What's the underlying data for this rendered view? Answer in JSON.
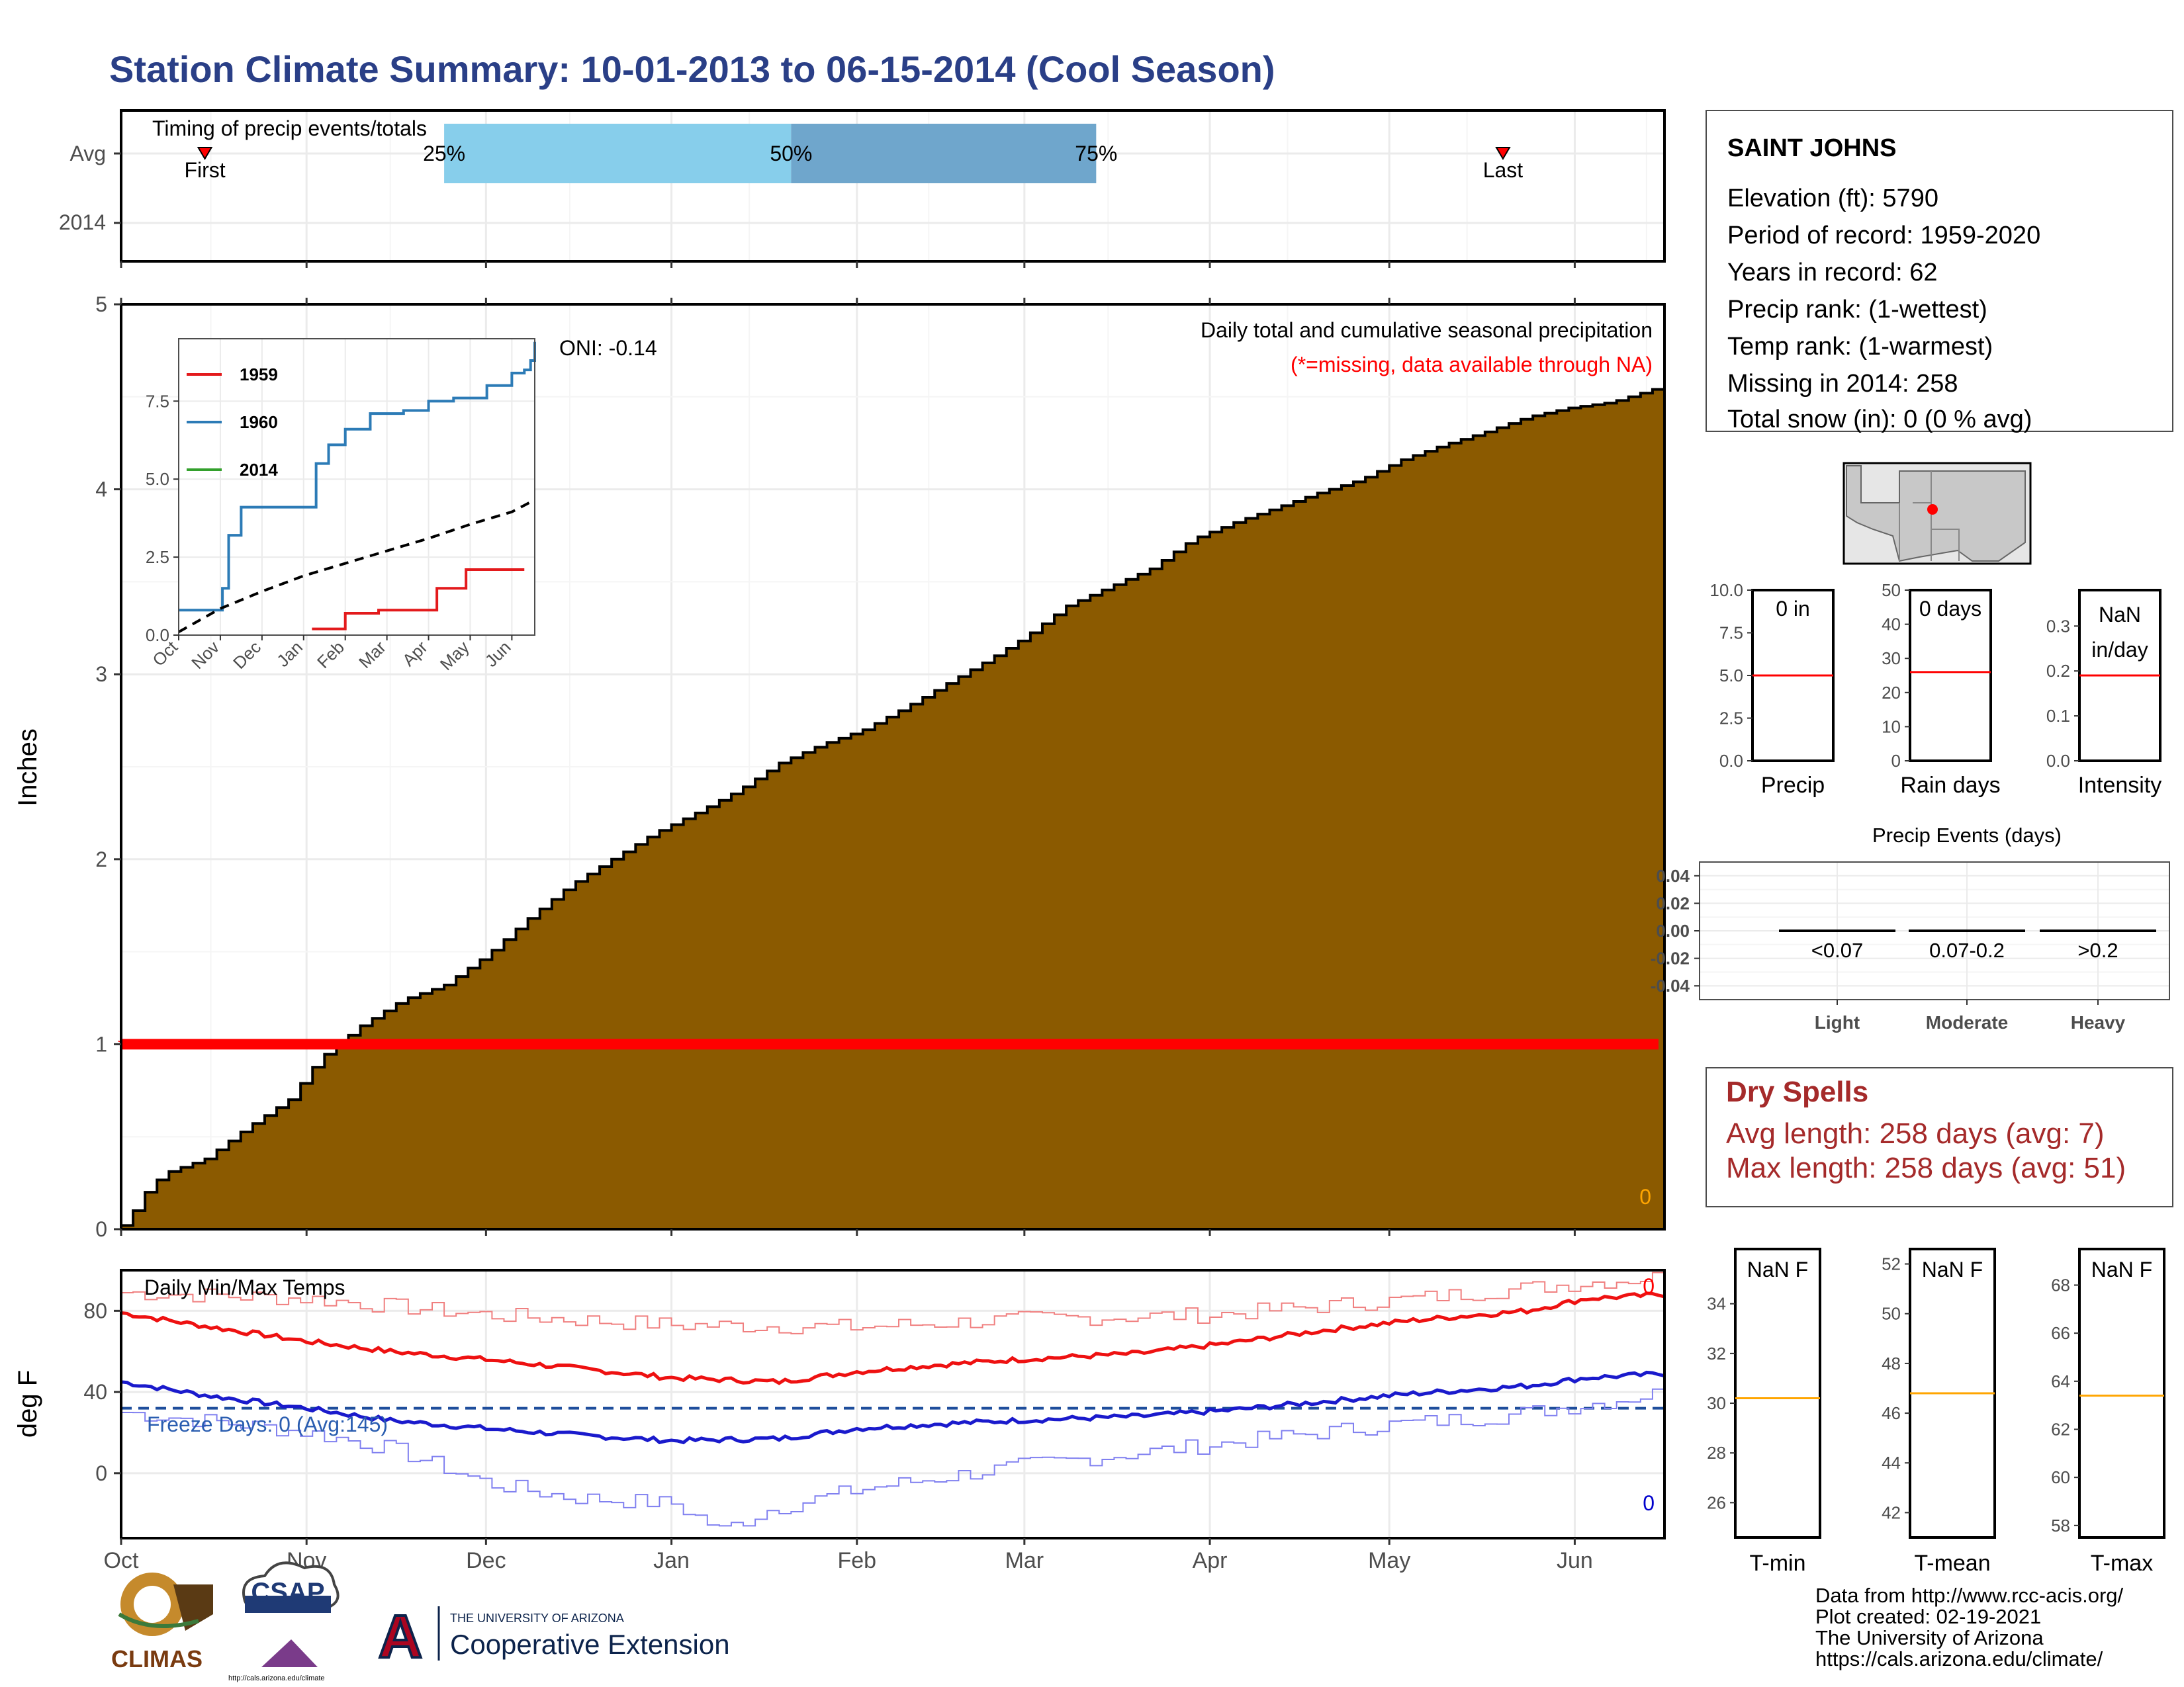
{
  "page": {
    "title": "Station Climate Summary: 10-01-2013 to 06-15-2014 (Cool Season)",
    "footer_lines": [
      "Data from http://www.rcc-acis.org/",
      "Plot created: 02-19-2021",
      "The University of Arizona",
      "https://cals.arizona.edu/climate/"
    ],
    "logos": {
      "climas": "CLIMAS",
      "csap": "CSAP",
      "csap_url": "http://cals.arizona.edu/climate",
      "ua_small": "THE UNIVERSITY OF ARIZONA",
      "ua_big": "Cooperative Extension"
    }
  },
  "station": {
    "name": "SAINT JOHNS",
    "lines": [
      "Elevation (ft): 5790",
      "Period of record: 1959-2020",
      "Years in record: 62",
      "Precip rank:  (1-wettest)",
      "Temp rank:  (1-warmest)",
      "Missing in 2014: 258",
      "Total snow (in): 0 (0 % avg)"
    ],
    "map_marker": "red-dot"
  },
  "dry_spells": {
    "title": "Dry Spells",
    "avg_line": "Avg length: 258 days (avg: 7)",
    "max_line": "Max length: 258 days (avg: 51)"
  },
  "chart_data": [
    {
      "id": "timing",
      "type": "bar",
      "title": "Timing of precip events/totals",
      "y_categories": [
        "Avg",
        "2014"
      ],
      "months": [
        "Oct",
        "Nov",
        "Dec",
        "Jan",
        "Feb",
        "Mar",
        "Apr",
        "May",
        "Jun"
      ],
      "quartile_band": [
        {
          "from": "Nov 24",
          "to": "Jan 21",
          "label": "25%"
        },
        {
          "from": "Jan 21",
          "to": "Mar 13",
          "label": "50%"
        }
      ],
      "band_end_label": "75%",
      "band_colors": [
        "#87ceeb",
        "#6fa6cc"
      ],
      "first": {
        "label": "First",
        "date": "Oct 15"
      },
      "last": {
        "label": "Last",
        "date": "May 20"
      }
    },
    {
      "id": "precip",
      "type": "area",
      "annotation_title": "Daily total and cumulative seasonal precipitation",
      "annotation_missing": "(*=missing, data available through NA)",
      "ylabel": "Inches",
      "ylim": [
        0,
        5
      ],
      "yticks": [
        0,
        1,
        2,
        3,
        4,
        5
      ],
      "months": [
        "Oct",
        "Nov",
        "Dec",
        "Jan",
        "Feb",
        "Mar",
        "Apr",
        "May",
        "Jun"
      ],
      "series": [
        {
          "name": "avg cumulative",
          "color": "#8b5a00",
          "x": [
            "Oct 1",
            "Oct 2",
            "Oct 5",
            "Oct 8",
            "Oct 15",
            "Oct 22",
            "Oct 29",
            "Nov 3",
            "Nov 10",
            "Nov 17",
            "Nov 24",
            "Dec 1",
            "Dec 8",
            "Dec 15",
            "Dec 22",
            "Dec 29",
            "Jan 5",
            "Jan 12",
            "Jan 19",
            "Jan 26",
            "Feb 2",
            "Feb 9",
            "Feb 16",
            "Feb 23",
            "Mar 1",
            "Mar 8",
            "Mar 15",
            "Mar 22",
            "Mar 29",
            "Apr 5",
            "Apr 12",
            "Apr 19",
            "Apr 26",
            "May 3",
            "May 10",
            "May 17",
            "May 24",
            "May 31",
            "Jun 7",
            "Jun 15"
          ],
          "y": [
            0.02,
            0.05,
            0.2,
            0.3,
            0.38,
            0.55,
            0.7,
            0.92,
            1.1,
            1.24,
            1.32,
            1.48,
            1.68,
            1.86,
            2.0,
            2.14,
            2.25,
            2.37,
            2.52,
            2.62,
            2.7,
            2.82,
            2.95,
            3.08,
            3.2,
            3.37,
            3.47,
            3.57,
            3.73,
            3.82,
            3.9,
            3.98,
            4.05,
            4.16,
            4.24,
            4.31,
            4.39,
            4.44,
            4.47,
            4.55
          ]
        },
        {
          "name": "2014 missing",
          "color": "#ff0000",
          "x": [
            "Oct 1",
            "Jun 15"
          ],
          "y": [
            1.0,
            1.0
          ]
        }
      ],
      "oni": "ONI: -0.14",
      "count_label": "0"
    },
    {
      "id": "inset",
      "type": "line",
      "xlabels": [
        "Oct",
        "Nov",
        "Dec",
        "Jan",
        "Feb",
        "Mar",
        "Apr",
        "May",
        "Jun"
      ],
      "ylim": [
        0,
        9.5
      ],
      "yticks": [
        "0.0",
        "2.5",
        "5.0",
        "7.5"
      ],
      "series": [
        {
          "name": "1959",
          "color": "#e31a1c",
          "x": [
            3.2,
            3.9,
            4.0,
            4.8,
            6.0,
            6.2,
            6.9,
            8.3
          ],
          "y": [
            0.2,
            0.2,
            0.7,
            0.8,
            0.8,
            1.5,
            2.1,
            2.1
          ]
        },
        {
          "name": "1960",
          "color": "#2c7bb6",
          "x": [
            0,
            0.9,
            1.05,
            1.2,
            1.5,
            2.2,
            3.0,
            3.3,
            3.6,
            4.0,
            4.6,
            5.4,
            6.0,
            6.6,
            7.4,
            8.0,
            8.3,
            8.45,
            8.55
          ],
          "y": [
            0.8,
            0.8,
            1.5,
            3.2,
            4.1,
            4.1,
            4.1,
            5.5,
            6.1,
            6.6,
            7.1,
            7.2,
            7.5,
            7.6,
            8.0,
            8.4,
            8.5,
            8.8,
            9.4
          ]
        },
        {
          "name": "2014",
          "color": "#33a02c",
          "x": [],
          "y": []
        },
        {
          "name": "avg",
          "color": "#000000",
          "dashed": true,
          "x": [
            0,
            1,
            2,
            3,
            4,
            5,
            6,
            7,
            8,
            8.5
          ],
          "y": [
            0.1,
            0.85,
            1.4,
            1.9,
            2.3,
            2.7,
            3.1,
            3.55,
            3.95,
            4.3
          ]
        }
      ]
    },
    {
      "id": "mini-bars",
      "type": "bar",
      "panels": [
        {
          "label": "Precip",
          "value_text": "0 in",
          "ylim": [
            0,
            10
          ],
          "yticks": [
            "0.0",
            "2.5",
            "5.0",
            "7.5",
            "10.0"
          ],
          "avg": 5.0
        },
        {
          "label": "Rain days",
          "value_text": "0 days",
          "ylim": [
            0,
            50
          ],
          "yticks": [
            "0",
            "10",
            "20",
            "30",
            "40",
            "50"
          ],
          "avg": 26
        },
        {
          "label": "Intensity",
          "value_text_1": "NaN",
          "value_text_2": "in/day",
          "ylim": [
            0,
            0.38
          ],
          "yticks": [
            "0.0",
            "0.1",
            "0.2",
            "0.3"
          ],
          "avg": 0.19
        }
      ]
    },
    {
      "id": "events",
      "type": "bar",
      "title": "Precip Events (days)",
      "categories": [
        "Light",
        "Moderate",
        "Heavy"
      ],
      "sublabels": [
        "<0.07",
        "0.07-0.2",
        ">0.2"
      ],
      "values": [
        0,
        0,
        0
      ],
      "ylim": [
        -0.05,
        0.05
      ],
      "yticks": [
        "0.04",
        "0.02",
        "0.00",
        "-0.02",
        "-0.04"
      ]
    },
    {
      "id": "temps",
      "type": "line",
      "title": "Daily Min/Max Temps",
      "ylabel": "deg F",
      "ylim": [
        -32,
        100
      ],
      "yticks": [
        0,
        40,
        80
      ],
      "freeze_text": "Freeze Days: 0 (Avg:145)",
      "freeze_line": 32,
      "count_hi": "0",
      "count_lo": "0",
      "months": [
        "Oct",
        "Nov",
        "Dec",
        "Jan",
        "Feb",
        "Mar",
        "Apr",
        "May",
        "Jun"
      ],
      "series": [
        {
          "name": "avg max",
          "color": "#ee1111",
          "x": [
            0,
            15,
            31,
            45,
            61,
            75,
            92,
            110,
            123,
            135,
            150,
            170,
            185,
            200,
            215,
            235,
            245,
            258
          ],
          "y": [
            79,
            72,
            65,
            60,
            56,
            52,
            47,
            45,
            50,
            53,
            56,
            59,
            64,
            70,
            75,
            80,
            86,
            88
          ]
        },
        {
          "name": "avg min",
          "color": "#1a1acc",
          "x": [
            0,
            15,
            31,
            45,
            61,
            75,
            92,
            110,
            123,
            135,
            150,
            170,
            185,
            200,
            215,
            235,
            245,
            258
          ],
          "y": [
            45,
            38,
            32,
            26,
            22,
            19,
            16,
            17,
            22,
            24,
            26,
            28,
            31,
            35,
            39,
            43,
            47,
            49
          ]
        },
        {
          "name": "record max",
          "color": "#f08080",
          "x": [
            0,
            31,
            61,
            92,
            123,
            151,
            182,
            212,
            245,
            258
          ],
          "y": [
            89,
            86,
            78,
            73,
            72,
            76,
            78,
            85,
            94,
            97
          ]
        },
        {
          "name": "record min",
          "color": "#8080f0",
          "x": [
            0,
            20,
            31,
            45,
            61,
            75,
            92,
            100,
            108,
            123,
            151,
            182,
            212,
            230,
            245,
            258
          ],
          "y": [
            30,
            24,
            20,
            12,
            -5,
            -12,
            -15,
            -28,
            -18,
            -8,
            4,
            14,
            24,
            28,
            34,
            40
          ]
        }
      ]
    },
    {
      "id": "temp-panels",
      "type": "bar",
      "panels": [
        {
          "label": "T-min",
          "value_text": "NaN F",
          "ylim": [
            24.6,
            36.2
          ],
          "yticks": [
            "26",
            "28",
            "30",
            "32",
            "34"
          ],
          "avg": 30.2
        },
        {
          "label": "T-mean",
          "value_text": "NaN F",
          "ylim": [
            41.0,
            52.6
          ],
          "yticks": [
            "42",
            "44",
            "46",
            "48",
            "50",
            "52"
          ],
          "avg": 46.8
        },
        {
          "label": "T-max",
          "value_text": "NaN F",
          "ylim": [
            57.5,
            69.5
          ],
          "yticks": [
            "58",
            "60",
            "62",
            "64",
            "66",
            "68"
          ],
          "avg": 63.4
        }
      ]
    }
  ]
}
